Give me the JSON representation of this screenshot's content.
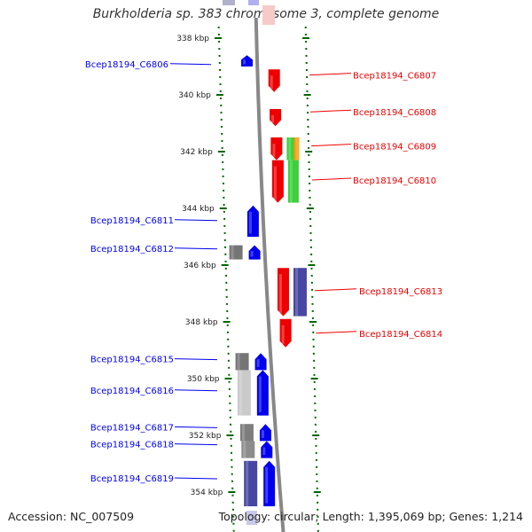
{
  "title": "Burkholderia sp. 383 chromosome 3, complete genome",
  "accession": "Accession: NC_007509",
  "summary": "Topology: circular; Length: 1,395,069 bp; Genes: 1,214",
  "colors": {
    "reverse": "#0000ee",
    "forward": "#ee0000",
    "blast_gray": "#666666",
    "blast_green": "#33cc33",
    "blast_orange": "#ff9900",
    "blast_navy": "#333399",
    "tick": "#006600",
    "axis": "#888888"
  },
  "ticks": [
    {
      "kbp": 338,
      "label": "338 kbp"
    },
    {
      "kbp": 340,
      "label": "340 kbp"
    },
    {
      "kbp": 342,
      "label": "342 kbp"
    },
    {
      "kbp": 344,
      "label": "344 kbp"
    },
    {
      "kbp": 346,
      "label": "346 kbp"
    },
    {
      "kbp": 348,
      "label": "348 kbp"
    },
    {
      "kbp": 350,
      "label": "350 kbp"
    },
    {
      "kbp": 352,
      "label": "352 kbp"
    },
    {
      "kbp": 354,
      "label": "354 kbp"
    }
  ],
  "genes": [
    {
      "id": "Bcep18194_C6806",
      "strand": "reverse",
      "start": 338.6,
      "end": 339.0
    },
    {
      "id": "Bcep18194_C6807",
      "strand": "forward",
      "start": 339.1,
      "end": 339.9
    },
    {
      "id": "Bcep18194_C6808",
      "strand": "forward",
      "start": 340.5,
      "end": 341.1
    },
    {
      "id": "Bcep18194_C6809",
      "strand": "forward",
      "start": 341.5,
      "end": 342.3
    },
    {
      "id": "Bcep18194_C6810",
      "strand": "forward",
      "start": 342.3,
      "end": 343.8
    },
    {
      "id": "Bcep18194_C6811",
      "strand": "reverse",
      "start": 343.9,
      "end": 345.0
    },
    {
      "id": "Bcep18194_C6812",
      "strand": "reverse",
      "start": 345.3,
      "end": 345.8
    },
    {
      "id": "Bcep18194_C6813",
      "strand": "forward",
      "start": 346.1,
      "end": 347.8
    },
    {
      "id": "Bcep18194_C6814",
      "strand": "forward",
      "start": 347.9,
      "end": 348.9
    },
    {
      "id": "Bcep18194_C6815",
      "strand": "reverse",
      "start": 349.1,
      "end": 349.7
    },
    {
      "id": "Bcep18194_C6816",
      "strand": "reverse",
      "start": 349.7,
      "end": 351.3
    },
    {
      "id": "Bcep18194_C6817",
      "strand": "reverse",
      "start": 351.6,
      "end": 352.2
    },
    {
      "id": "Bcep18194_C6818",
      "strand": "reverse",
      "start": 352.2,
      "end": 352.8
    },
    {
      "id": "Bcep18194_C6819",
      "strand": "reverse",
      "start": 352.9,
      "end": 354.5
    }
  ],
  "labels_left": [
    {
      "gene": "Bcep18194_C6806",
      "kbp": 338.9
    },
    {
      "gene": "Bcep18194_C6811",
      "kbp": 344.4
    },
    {
      "gene": "Bcep18194_C6812",
      "kbp": 345.4
    },
    {
      "gene": "Bcep18194_C6815",
      "kbp": 349.3
    },
    {
      "gene": "Bcep18194_C6816",
      "kbp": 350.4
    },
    {
      "gene": "Bcep18194_C6817",
      "kbp": 351.7
    },
    {
      "gene": "Bcep18194_C6818",
      "kbp": 352.3
    },
    {
      "gene": "Bcep18194_C6819",
      "kbp": 353.5
    }
  ],
  "labels_right": [
    {
      "gene": "Bcep18194_C6807",
      "kbp": 339.3
    },
    {
      "gene": "Bcep18194_C6808",
      "kbp": 340.6
    },
    {
      "gene": "Bcep18194_C6809",
      "kbp": 341.8
    },
    {
      "gene": "Bcep18194_C6810",
      "kbp": 343.0
    },
    {
      "gene": "Bcep18194_C6813",
      "kbp": 346.9
    },
    {
      "gene": "Bcep18194_C6814",
      "kbp": 348.4
    }
  ],
  "blast_hits": [
    {
      "side": "left",
      "color": "gray",
      "start": 345.3,
      "end": 345.8,
      "shade": 0.9
    },
    {
      "side": "left",
      "color": "gray",
      "start": 349.1,
      "end": 349.7,
      "shade": 0.9
    },
    {
      "side": "left",
      "color": "gray",
      "start": 349.7,
      "end": 351.3,
      "shade": 0.35
    },
    {
      "side": "left",
      "color": "gray",
      "start": 351.6,
      "end": 352.2,
      "shade": 0.85
    },
    {
      "side": "left",
      "color": "gray",
      "start": 352.2,
      "end": 352.8,
      "shade": 0.75
    },
    {
      "side": "left",
      "color": "navy",
      "start": 352.9,
      "end": 354.5,
      "shade": 0.9
    },
    {
      "side": "right",
      "color": "green",
      "start": 341.5,
      "end": 342.3,
      "shade": 0.95
    },
    {
      "side": "right",
      "color": "orange",
      "start": 341.5,
      "end": 342.3,
      "shade": 0.95
    },
    {
      "side": "right",
      "color": "green",
      "start": 342.3,
      "end": 343.8,
      "shade": 0.95
    },
    {
      "side": "right",
      "color": "navy",
      "start": 346.1,
      "end": 347.8,
      "shade": 0.9
    }
  ]
}
